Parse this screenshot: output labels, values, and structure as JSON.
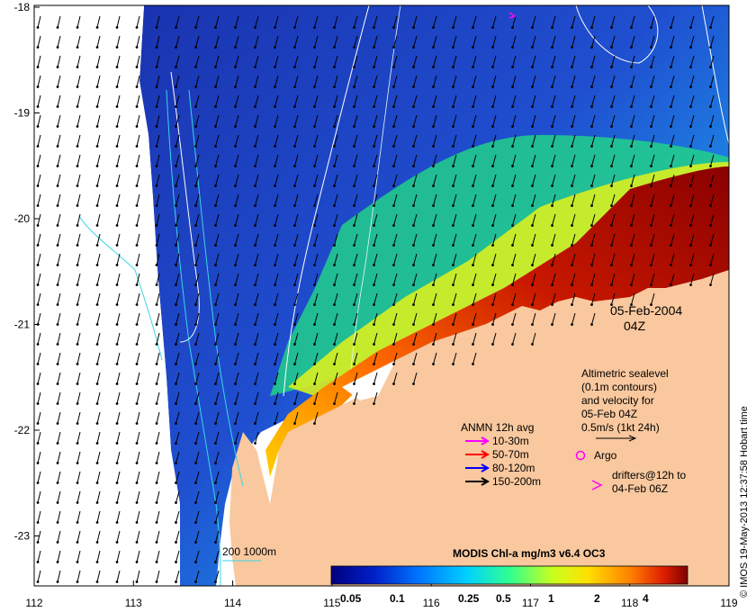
{
  "map": {
    "lon_ticks": [
      "112",
      "113",
      "114",
      "115",
      "116",
      "117",
      "118",
      "119"
    ],
    "lat_ticks": [
      "-18",
      "-19",
      "-20",
      "-21",
      "-22",
      "-23"
    ],
    "date": "05-Feb-2004",
    "time": "04Z",
    "altimetry_lines": [
      "Altimetric sealevel",
      "(0.1m contours)",
      "and velocity for",
      "05-Feb 04Z",
      "0.5m/s (1kt 24h)"
    ],
    "anmn_title": "ANMN 12h avg",
    "anmn_depths": [
      {
        "label": "10-30m",
        "color": "#ff00ff"
      },
      {
        "label": "50-70m",
        "color": "#ff0000"
      },
      {
        "label": "80-120m",
        "color": "#0000ff"
      },
      {
        "label": "150-200m",
        "color": "#000000"
      }
    ],
    "argo_label": "Argo",
    "argo_color": "#ff00ff",
    "drifter_lines": [
      "drifters@12h to",
      "04-Feb 06Z"
    ],
    "drifter_color": "#ff00ff",
    "contour_legend": "200  1000m",
    "colorbar_title": "MODIS Chl-a mg/m3 v6.4 OC3",
    "colorbar_labels": [
      "0.05",
      "0.1",
      "0.25",
      "0.5",
      "1",
      "2",
      "4"
    ],
    "credit": "© IMOS 19-May-2013 12:37:58 Hobart time",
    "colors": {
      "land": "#f9c89e",
      "deep_blue": "#1d3fb8",
      "contour_cyan": "#37d6e6",
      "contour_white": "#ffffff"
    }
  }
}
